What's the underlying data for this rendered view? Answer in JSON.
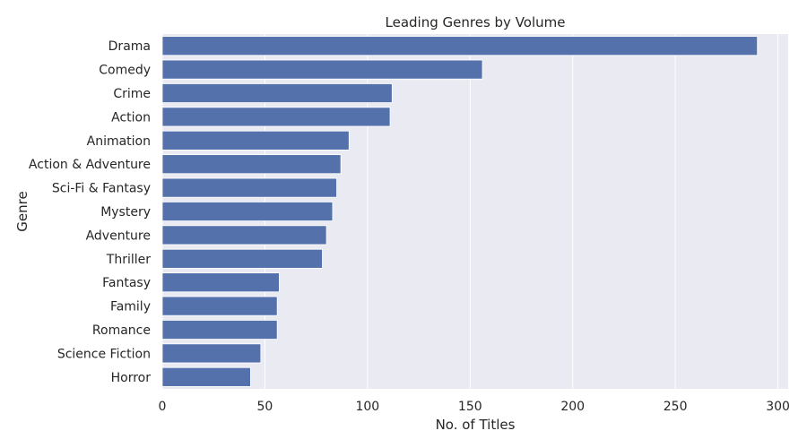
{
  "chart_data": {
    "type": "bar",
    "orientation": "horizontal",
    "title": "Leading Genres by Volume",
    "xlabel": "No. of Titles",
    "ylabel": "Genre",
    "xlim": [
      0,
      305
    ],
    "xticks": [
      0,
      50,
      100,
      150,
      200,
      250,
      300
    ],
    "grid": true,
    "bar_color": "#5471ab",
    "plot_background": "#eaeaf2",
    "grid_color": "#ffffff",
    "categories": [
      "Drama",
      "Comedy",
      "Crime",
      "Action",
      "Animation",
      "Action & Adventure",
      "Sci-Fi & Fantasy",
      "Mystery",
      "Adventure",
      "Thriller",
      "Fantasy",
      "Family",
      "Romance",
      "Science Fiction",
      "Horror"
    ],
    "values": [
      290,
      156,
      112,
      111,
      91,
      87,
      85,
      83,
      80,
      78,
      57,
      56,
      56,
      48,
      43
    ]
  }
}
